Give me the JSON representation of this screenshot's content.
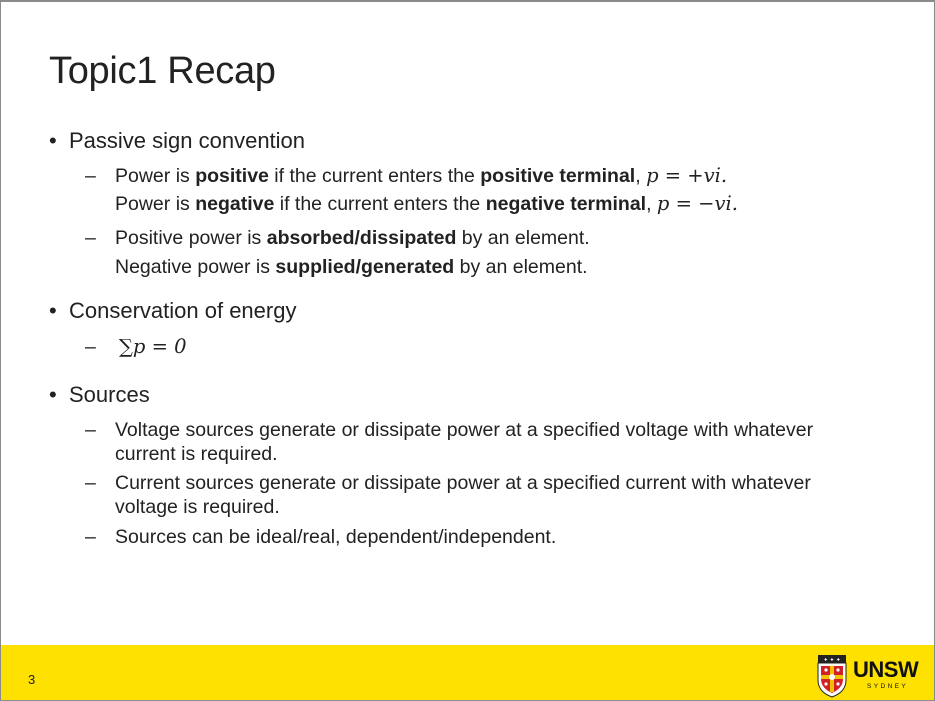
{
  "slide": {
    "title": "Topic1 Recap",
    "page_number": "3",
    "sections": [
      {
        "heading": "Passive sign convention",
        "items": [
          {
            "line1": {
              "a": "Power is ",
              "b": "positive",
              "c": " if the current enters the ",
              "d": "positive terminal",
              "e": ", ",
              "math": "p = +vi."
            },
            "line2": {
              "a": "Power is ",
              "b": "negative",
              "c": " if the current enters the ",
              "d": "negative terminal",
              "e": ", ",
              "math": "p = −vi."
            }
          },
          {
            "line1": {
              "a": "Positive power is ",
              "b": "absorbed/dissipated",
              "c": " by an element."
            },
            "line2": {
              "a": "Negative power is ",
              "b": "supplied/generated",
              "c": " by an element."
            }
          }
        ]
      },
      {
        "heading": "Conservation of energy",
        "items": [
          {
            "math": "∑p = 0"
          }
        ]
      },
      {
        "heading": "Sources",
        "items": [
          {
            "text": "Voltage sources generate or dissipate power at a specified voltage with whatever current is required."
          },
          {
            "text": "Current sources generate or dissipate power at a specified current with whatever voltage is required."
          },
          {
            "text": "Sources can be ideal/real, dependent/independent."
          }
        ]
      }
    ]
  },
  "branding": {
    "logo_text": "UNSW",
    "logo_subtext": "SYDNEY",
    "footer_color": "#ffe100",
    "shield_colors": {
      "red": "#d22027",
      "gold": "#f2c200",
      "dark": "#222222"
    }
  },
  "glyphs": {
    "bullet": "•",
    "dash": "–"
  }
}
